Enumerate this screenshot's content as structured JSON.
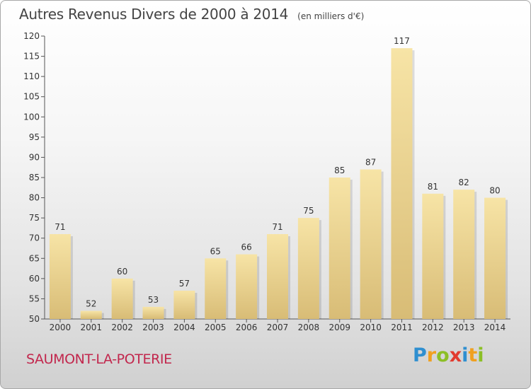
{
  "header": {
    "title": "Autres Revenus Divers de 2000 à 2014",
    "unit": "(en milliers d'€)"
  },
  "footer": {
    "town": "SAUMONT-LA-POTERIE",
    "logo_letters": [
      {
        "char": "P",
        "color": "#2f8fd0"
      },
      {
        "char": "r",
        "color": "#f0a020"
      },
      {
        "char": "o",
        "color": "#8cbf26"
      },
      {
        "char": "x",
        "color": "#e23a2e"
      },
      {
        "char": "i",
        "color": "#2f8fd0"
      },
      {
        "char": "t",
        "color": "#f0a020"
      },
      {
        "char": "i",
        "color": "#8cbf26"
      }
    ]
  },
  "colors": {
    "bar_light": "#f7e4a6",
    "bar_dark": "#d8bc76",
    "axis": "#555555",
    "text": "#333333"
  },
  "chart_data": {
    "type": "bar",
    "categories": [
      "2000",
      "2001",
      "2002",
      "2003",
      "2004",
      "2005",
      "2006",
      "2007",
      "2008",
      "2009",
      "2010",
      "2011",
      "2012",
      "2013",
      "2014"
    ],
    "values": [
      71,
      52,
      60,
      53,
      57,
      65,
      66,
      71,
      75,
      85,
      87,
      117,
      81,
      82,
      80
    ],
    "ylim": [
      50,
      120
    ],
    "yticks": [
      50,
      55,
      60,
      65,
      70,
      75,
      80,
      85,
      90,
      95,
      100,
      105,
      110,
      115,
      120
    ],
    "grid": false,
    "legend": "none"
  }
}
